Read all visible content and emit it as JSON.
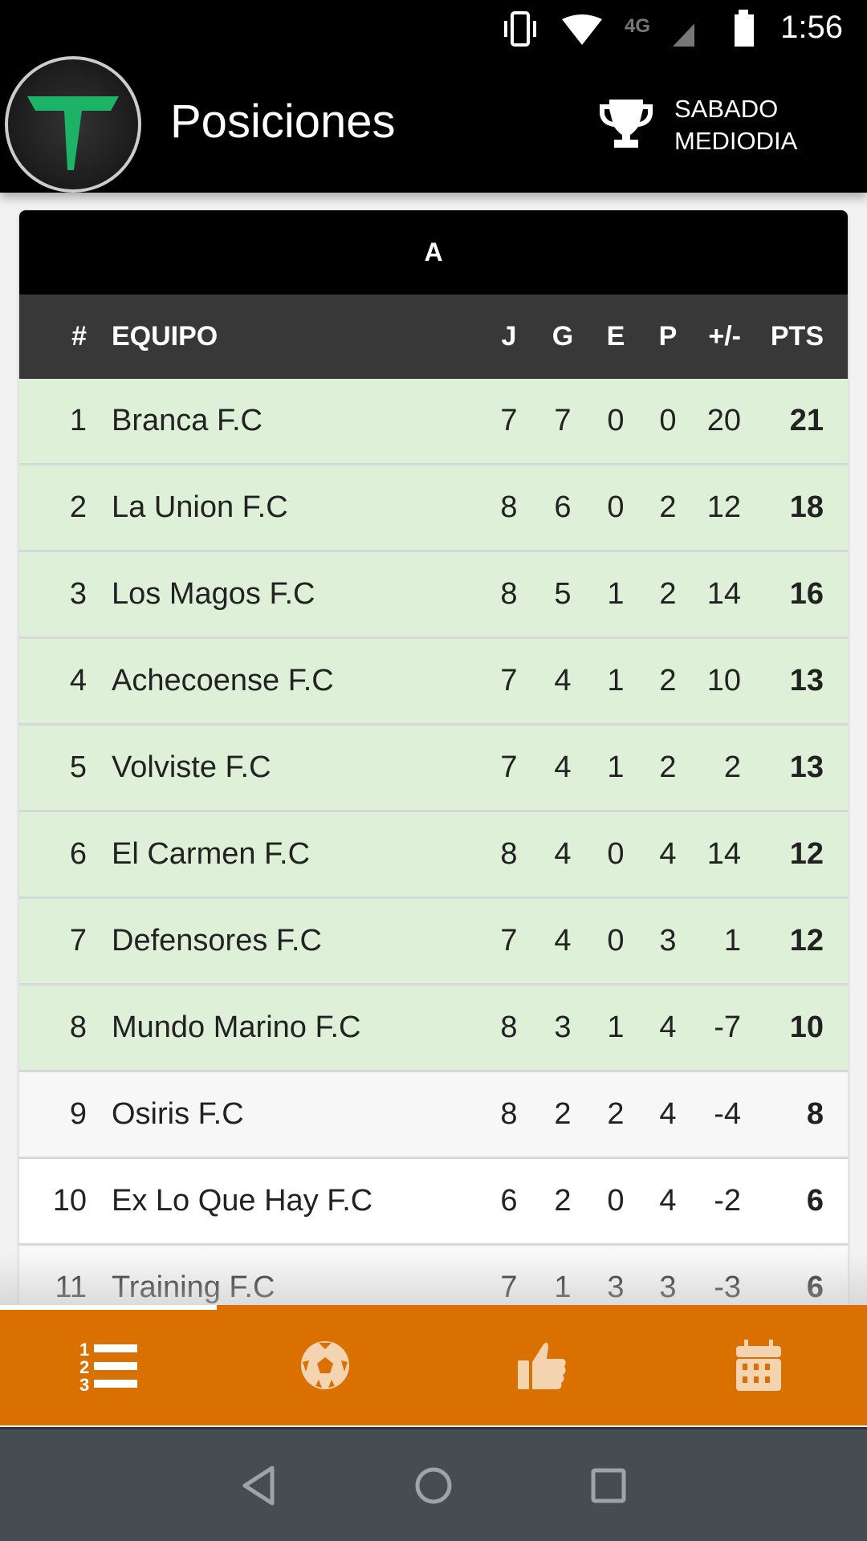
{
  "status_bar": {
    "time": "1:56",
    "network": "4G",
    "icons": [
      "vibrate-icon",
      "wifi-icon",
      "signal-icon",
      "battery-icon"
    ]
  },
  "app_bar": {
    "title": "Posiciones",
    "league_line1": "SABADO",
    "league_line2": "MEDIODIA",
    "logo_letter": "T"
  },
  "table": {
    "group": "A",
    "headers": {
      "pos": "#",
      "team": "EQUIPO",
      "j": "J",
      "g": "G",
      "e": "E",
      "p": "P",
      "gd": "+/-",
      "pts": "PTS"
    },
    "rows": [
      {
        "pos": "1",
        "team": "Branca F.C",
        "j": "7",
        "g": "7",
        "e": "0",
        "p": "0",
        "gd": "20",
        "pts": "21",
        "highlight": true
      },
      {
        "pos": "2",
        "team": "La Union F.C",
        "j": "8",
        "g": "6",
        "e": "0",
        "p": "2",
        "gd": "12",
        "pts": "18",
        "highlight": true
      },
      {
        "pos": "3",
        "team": "Los Magos F.C",
        "j": "8",
        "g": "5",
        "e": "1",
        "p": "2",
        "gd": "14",
        "pts": "16",
        "highlight": true
      },
      {
        "pos": "4",
        "team": "Achecoense F.C",
        "j": "7",
        "g": "4",
        "e": "1",
        "p": "2",
        "gd": "10",
        "pts": "13",
        "highlight": true
      },
      {
        "pos": "5",
        "team": "Volviste F.C",
        "j": "7",
        "g": "4",
        "e": "1",
        "p": "2",
        "gd": "2",
        "pts": "13",
        "highlight": true
      },
      {
        "pos": "6",
        "team": "El Carmen F.C",
        "j": "8",
        "g": "4",
        "e": "0",
        "p": "4",
        "gd": "14",
        "pts": "12",
        "highlight": true
      },
      {
        "pos": "7",
        "team": "Defensores F.C",
        "j": "7",
        "g": "4",
        "e": "0",
        "p": "3",
        "gd": "1",
        "pts": "12",
        "highlight": true
      },
      {
        "pos": "8",
        "team": "Mundo Marino F.C",
        "j": "8",
        "g": "3",
        "e": "1",
        "p": "4",
        "gd": "-7",
        "pts": "10",
        "highlight": true
      },
      {
        "pos": "9",
        "team": "Osiris F.C",
        "j": "8",
        "g": "2",
        "e": "2",
        "p": "4",
        "gd": "-4",
        "pts": "8",
        "highlight": false
      },
      {
        "pos": "10",
        "team": "Ex Lo Que Hay F.C",
        "j": "6",
        "g": "2",
        "e": "0",
        "p": "4",
        "gd": "-2",
        "pts": "6",
        "highlight": false
      },
      {
        "pos": "11",
        "team": "Training F.C",
        "j": "7",
        "g": "1",
        "e": "3",
        "p": "3",
        "gd": "-3",
        "pts": "6",
        "highlight": false
      }
    ]
  },
  "bottom_nav": {
    "items": [
      "standings-icon",
      "soccer-ball-icon",
      "thumbs-up-icon",
      "calendar-icon"
    ],
    "active": 0
  },
  "colors": {
    "accent": "#d97000",
    "highlight_row": "#dff0d8",
    "header": "#383838",
    "logo_green": "#1db366"
  }
}
